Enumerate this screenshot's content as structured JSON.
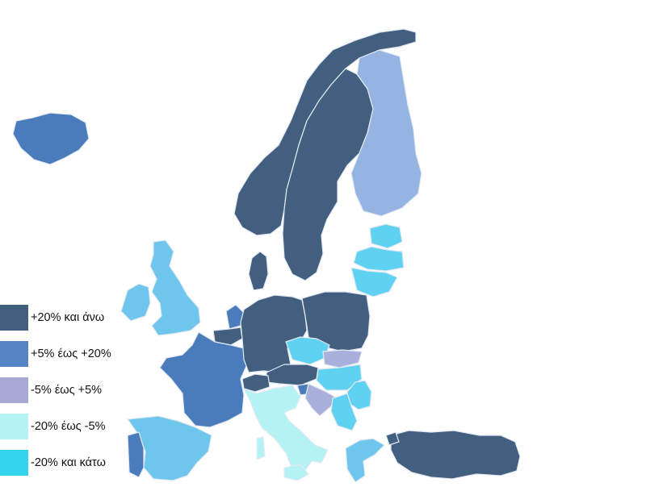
{
  "legend": {
    "items": [
      {
        "label": "+20% και άνω",
        "color": "#425f80"
      },
      {
        "label": "+5% έως +20%",
        "color": "#5585c4"
      },
      {
        "label": "-5% έως +5%",
        "color": "#a8a8d4"
      },
      {
        "label": "-20% έως -5%",
        "color": "#b5f4f5"
      },
      {
        "label": "-20% και κάτω",
        "color": "#33d3f0"
      }
    ]
  },
  "map_colors": {
    "c1": "#425f80",
    "c2": "#4a7cbc",
    "c3": "#96b4e2",
    "c3b": "#aab0dc",
    "c4": "#b5f2f3",
    "c5": "#5ed2f0",
    "c5b": "#6fc6ec"
  }
}
